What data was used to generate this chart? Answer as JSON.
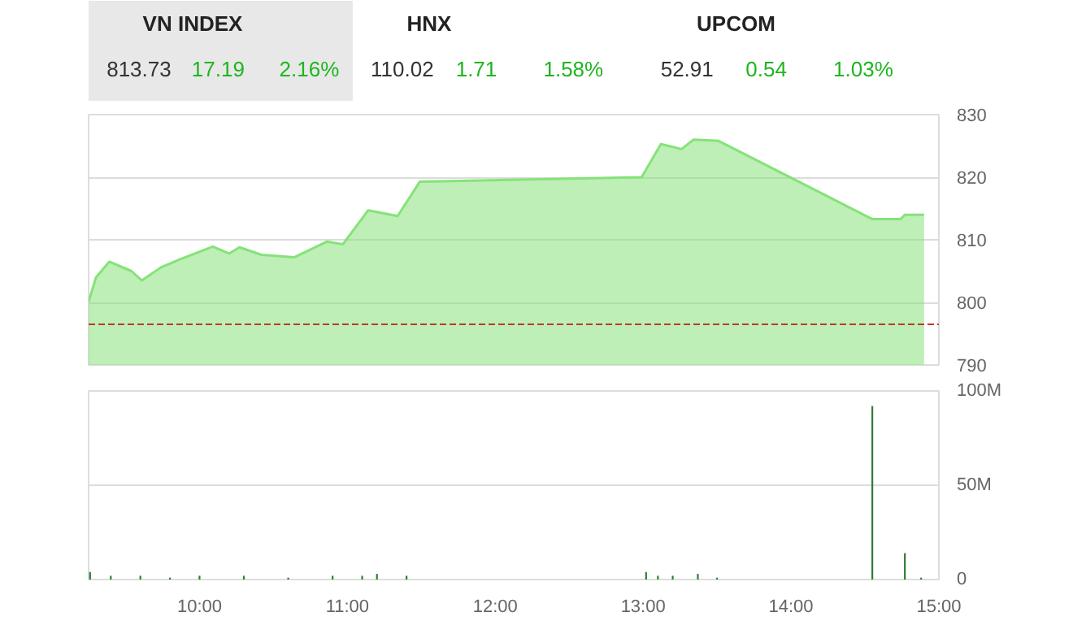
{
  "chart_data": [
    {
      "type": "other",
      "annotations": [
        "VN INDEX",
        "813.73",
        "17.19",
        "2.16%",
        "HNX",
        "110.02",
        "1.71",
        "1.58%",
        "UPCOM",
        "52.91",
        "0.54",
        "1.03%"
      ]
    },
    {
      "type": "area",
      "x": [
        9.25,
        9.3,
        9.39,
        9.54,
        9.61,
        9.74,
        9.87,
        10.09,
        10.2,
        10.27,
        10.42,
        10.64,
        10.86,
        10.97,
        11.14,
        11.34,
        11.49,
        12.99,
        13.12,
        13.26,
        13.34,
        13.51,
        14.55,
        14.74,
        14.77,
        14.9
      ],
      "series": [
        {
          "color": "#86e27a",
          "values": [
            800.1,
            804,
            806.5,
            805,
            803.5,
            805.6,
            806.9,
            808.9,
            807.8,
            808.8,
            807.6,
            807.2,
            809.7,
            809.3,
            814.7,
            813.8,
            819.3,
            820,
            825.3,
            824.5,
            826,
            825.8,
            813.3,
            813.3,
            814,
            814
          ]
        }
      ],
      "xlim": [
        9.25,
        15.0
      ],
      "ylim": [
        790,
        830
      ],
      "yticks": [
        790,
        800,
        810,
        820,
        830
      ],
      "grid": "y",
      "tick_labels": "y",
      "ref_lines": [
        {
          "axis": "y",
          "value": 796.5,
          "color": "#c0392b",
          "line_style": "dashed"
        }
      ]
    },
    {
      "type": "bar",
      "x": [
        9.26,
        9.4,
        9.6,
        9.8,
        10.0,
        10.3,
        10.6,
        10.9,
        11.1,
        11.2,
        11.4,
        13.02,
        13.1,
        13.2,
        13.37,
        13.5,
        14.55,
        14.77,
        14.88
      ],
      "series": [
        {
          "color": "#2e7d32",
          "values": [
            4,
            2,
            2,
            1,
            2,
            2,
            1,
            2,
            2,
            3,
            2,
            4,
            2,
            2,
            3,
            1,
            92,
            14,
            1
          ]
        }
      ],
      "xlim": [
        9.25,
        15.0
      ],
      "ylim": [
        0,
        100
      ],
      "yticks": [
        0,
        {
          "value": 50,
          "label": "50M"
        },
        {
          "value": 100,
          "label": "100M"
        }
      ],
      "xticks": [
        {
          "value": 10,
          "label": "10:00"
        },
        {
          "value": 11,
          "label": "11:00"
        },
        {
          "value": 12,
          "label": "12:00"
        },
        {
          "value": 13,
          "label": "13:00"
        },
        {
          "value": 14,
          "label": "14:00"
        },
        {
          "value": 15,
          "label": "15:00"
        }
      ],
      "grid": "y"
    }
  ]
}
